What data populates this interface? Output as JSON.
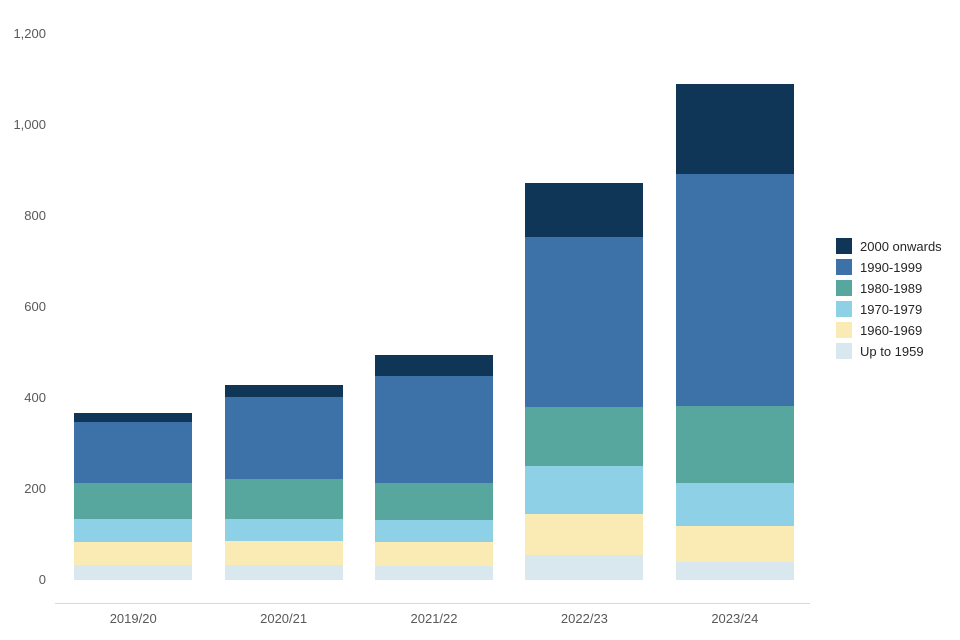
{
  "chart_data": {
    "type": "bar",
    "stacked": true,
    "title": "",
    "xlabel": "",
    "ylabel": "",
    "grid": false,
    "legend_position": "right",
    "ylim": [
      0,
      1200
    ],
    "y_ticks": [
      "1,200",
      "1,000",
      "800",
      "600",
      "400",
      "200",
      "0"
    ],
    "y_tick_values": [
      1200,
      1000,
      800,
      600,
      400,
      200,
      0
    ],
    "categories": [
      "2019/20",
      "2020/21",
      "2021/22",
      "2022/23",
      "2023/24"
    ],
    "series": [
      {
        "name": "Up to 1959",
        "color": "#d9e8ef",
        "values": [
          33,
          33,
          30,
          55,
          40
        ]
      },
      {
        "name": "1960-1969",
        "color": "#faeab4",
        "values": [
          50,
          52,
          53,
          90,
          79
        ]
      },
      {
        "name": "1970-1979",
        "color": "#8ed1e7",
        "values": [
          52,
          49,
          48,
          106,
          94
        ]
      },
      {
        "name": "1980-1989",
        "color": "#57a79f",
        "values": [
          78,
          88,
          82,
          129,
          169
        ]
      },
      {
        "name": "1990-1999",
        "color": "#3d72a8",
        "values": [
          135,
          180,
          236,
          374,
          510
        ]
      },
      {
        "name": "2000 onwards",
        "color": "#0f3557",
        "values": [
          19,
          26,
          45,
          118,
          198
        ]
      }
    ],
    "totals": [
      367,
      428,
      494,
      872,
      1090
    ],
    "legend_order": [
      "2000 onwards",
      "1990-1999",
      "1980-1989",
      "1970-1979",
      "1960-1969",
      "Up to 1959"
    ],
    "axis_line_color": "#d9d9d9",
    "tick_label_color": "#595959",
    "legend_text_color": "#262626"
  }
}
